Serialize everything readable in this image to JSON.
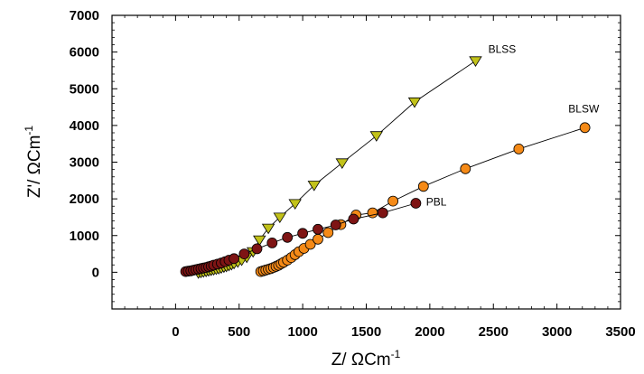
{
  "chart_data": {
    "type": "scatter",
    "title": "",
    "xlabel": "Z/ ΩCm",
    "xlabel_sup": "-1",
    "ylabel": "Z'/ ΩCm",
    "ylabel_sup": "-1",
    "xlim": [
      -500,
      3500
    ],
    "ylim": [
      -1000,
      7000
    ],
    "xticks": [
      0,
      500,
      1000,
      1500,
      2000,
      2500,
      3000,
      3500
    ],
    "yticks": [
      0,
      1000,
      2000,
      3000,
      4000,
      5000,
      6000,
      7000
    ],
    "xtick_labels": [
      "0",
      "500",
      "1000",
      "1500",
      "2000",
      "2500",
      "3000",
      "3500"
    ],
    "ytick_labels": [
      "0",
      "1000",
      "2000",
      "3000",
      "4000",
      "5000",
      "6000",
      "7000"
    ],
    "grid": false,
    "series": [
      {
        "name": "BLSS",
        "marker": "triangle-down",
        "color": "#c2c21a",
        "label_at": [
          2460,
          5980
        ],
        "x": [
          180,
          200,
          220,
          240,
          260,
          280,
          300,
          320,
          340,
          360,
          380,
          400,
          420,
          440,
          460,
          490,
          520,
          560,
          610,
          660,
          730,
          820,
          940,
          1090,
          1310,
          1580,
          1880,
          2360
        ],
        "y": [
          -20,
          -5,
          10,
          25,
          40,
          55,
          70,
          85,
          100,
          120,
          140,
          160,
          185,
          210,
          240,
          280,
          330,
          410,
          560,
          880,
          1200,
          1500,
          1870,
          2370,
          2980,
          3720,
          4640,
          5760
        ]
      },
      {
        "name": "BLSW",
        "marker": "circle",
        "color": "#f58a17",
        "label_at": [
          3090,
          4360
        ],
        "x": [
          670,
          690,
          710,
          730,
          750,
          770,
          790,
          810,
          830,
          850,
          880,
          910,
          940,
          970,
          1010,
          1060,
          1120,
          1200,
          1300,
          1420,
          1550,
          1710,
          1950,
          2280,
          2700,
          3220
        ],
        "y": [
          20,
          40,
          60,
          80,
          100,
          130,
          160,
          190,
          230,
          270,
          330,
          400,
          480,
          560,
          650,
          760,
          900,
          1080,
          1300,
          1560,
          1620,
          1940,
          2340,
          2820,
          3360,
          3940
        ]
      },
      {
        "name": "PBL",
        "marker": "circle",
        "color": "#7e1414",
        "label_at": [
          1970,
          1820
        ],
        "x": [
          80,
          100,
          120,
          140,
          160,
          180,
          200,
          220,
          240,
          260,
          280,
          300,
          330,
          360,
          390,
          420,
          460,
          540,
          640,
          760,
          880,
          1000,
          1120,
          1260,
          1400,
          1630,
          1890
        ],
        "y": [
          20,
          30,
          40,
          55,
          70,
          85,
          100,
          115,
          130,
          150,
          170,
          195,
          220,
          250,
          290,
          330,
          370,
          500,
          640,
          800,
          950,
          1060,
          1170,
          1290,
          1450,
          1620,
          1880
        ]
      }
    ]
  }
}
